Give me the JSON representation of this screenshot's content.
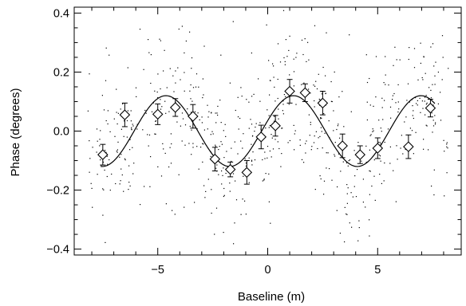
{
  "chart_data": {
    "type": "scatter",
    "title": "",
    "xlabel": "Baseline (m)",
    "ylabel": "Phase (degrees)",
    "xlim": [
      -8.8,
      8.8
    ],
    "ylim": [
      -0.42,
      0.42
    ],
    "xticks": [
      -5,
      0,
      5
    ],
    "xtick_labels": [
      "−5",
      "0",
      "5"
    ],
    "yticks": [
      -0.4,
      -0.2,
      0.0,
      0.2,
      0.4
    ],
    "ytick_labels": [
      "−0.4",
      "−0.2",
      "0.0",
      "0.2",
      "0.4"
    ],
    "grid": false,
    "legend": "none",
    "colors": {
      "ink": "#000000",
      "background": "#ffffff"
    },
    "binned_series": {
      "marker": "diamond",
      "x": [
        -7.5,
        -6.5,
        -5.0,
        -4.2,
        -3.4,
        -2.4,
        -1.7,
        -0.95,
        -0.3,
        0.35,
        1.0,
        1.7,
        2.5,
        3.4,
        4.2,
        5.0,
        6.4,
        7.4
      ],
      "y": [
        -0.08,
        0.055,
        0.057,
        0.08,
        0.05,
        -0.095,
        -0.13,
        -0.14,
        -0.02,
        0.018,
        0.135,
        0.13,
        0.095,
        -0.05,
        -0.08,
        -0.058,
        -0.053,
        0.078
      ],
      "yerr": [
        0.035,
        0.04,
        0.035,
        0.03,
        0.04,
        0.04,
        0.025,
        0.04,
        0.04,
        0.035,
        0.04,
        0.03,
        0.04,
        0.04,
        0.03,
        0.035,
        0.04,
        0.03
      ]
    },
    "model_curve": {
      "function": "sine",
      "amplitude": 0.12,
      "period": 5.8,
      "phase_offset": 0.3,
      "x_range": [
        -7.6,
        7.6
      ]
    },
    "raw_points": {
      "count": 700,
      "sigma": 0.14
    }
  }
}
